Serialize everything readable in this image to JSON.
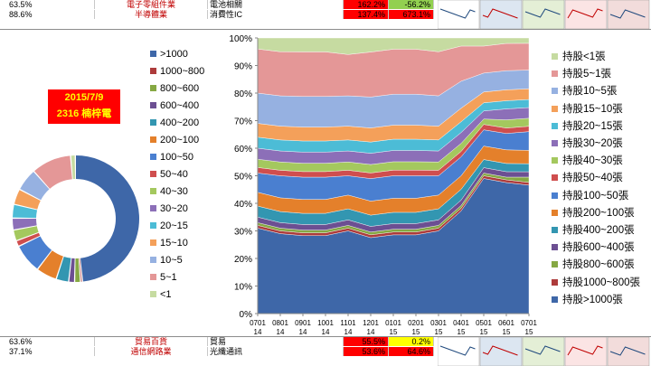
{
  "top_rows": [
    {
      "pct": "63.5%",
      "industry": "電子零組件業",
      "sub": "電池相關",
      "v1": "162.2%",
      "v2": "-56.2%",
      "v2_bg": "#92d050"
    },
    {
      "pct": "88.6%",
      "industry": "半導體業",
      "sub": "消費性IC",
      "v1": "137.4%",
      "v2": "673.1%",
      "v2_bg": "#ff0000"
    }
  ],
  "bottom_rows": [
    {
      "pct": "63.6%",
      "industry": "貿易百貨",
      "sub": "貿易",
      "v1": "55.5%",
      "v2": "0.2%",
      "v2_bg": "#ffff00"
    },
    {
      "pct": "37.1%",
      "industry": "通信網路業",
      "sub": "光纖通訊",
      "v1": "53.6%",
      "v2": "64.6%",
      "v2_bg": "#ff0000"
    }
  ],
  "date_label": "2015/7/9",
  "stock_label": "2316 楠梓電",
  "colors": {
    "tiers": [
      "#3e67a8",
      "#ad3b3b",
      "#86a843",
      "#6c4f92",
      "#3396b1",
      "#e4802b",
      "#4a7fd0",
      "#cf4e4e",
      "#a4c85e",
      "#8c6fb8",
      "#4cbcd6",
      "#f4a05a",
      "#96b1e1",
      "#e49797",
      "#c6dba1"
    ]
  },
  "chart_data": [
    {
      "type": "pie",
      "title": "",
      "labels": [
        ">1000",
        "1000~800",
        "800~600",
        "600~400",
        "400~200",
        "200~100",
        "100~50",
        "50~40",
        "40~30",
        "30~20",
        "20~15",
        "15~10",
        "10~5",
        "5~1",
        "<1"
      ],
      "values": [
        48.5,
        0.5,
        1.5,
        1.5,
        3.2,
        5.3,
        7.5,
        1.5,
        2.8,
        3.0,
        3.5,
        4.0,
        5.8,
        10.2,
        1.2
      ]
    },
    {
      "type": "area",
      "stacked": true,
      "percent": true,
      "x": [
        "0701 14",
        "0801 14",
        "0901 14",
        "1001 14",
        "1101 14",
        "1201 14",
        "0101 15",
        "0201 15",
        "0301 15",
        "0401 15",
        "0501 15",
        "0601 15",
        "0701 15"
      ],
      "ylim": [
        0,
        100
      ],
      "yticks": [
        "0%",
        "10%",
        "20%",
        "30%",
        "40%",
        "50%",
        "60%",
        "70%",
        "80%",
        "90%",
        "100%"
      ],
      "legend_position": "right",
      "series": [
        {
          "name": "持股>1000張",
          "values": [
            31,
            29,
            28,
            28,
            30,
            27,
            28,
            28,
            30,
            38,
            50,
            48,
            48
          ]
        },
        {
          "name": "持股1000~800張",
          "values": [
            1,
            1,
            1,
            1,
            1,
            1,
            1,
            1,
            1,
            1,
            1,
            1,
            1
          ]
        },
        {
          "name": "持股800~600張",
          "values": [
            1,
            1,
            1,
            1,
            1,
            1,
            1,
            1,
            1,
            1,
            1,
            1,
            2
          ]
        },
        {
          "name": "持股600~400張",
          "values": [
            2,
            2,
            2,
            2,
            2,
            2,
            2,
            2,
            2,
            2,
            2,
            2,
            2
          ]
        },
        {
          "name": "持股400~200張",
          "values": [
            4,
            4,
            4,
            4,
            4,
            4,
            4,
            4,
            4,
            4,
            3,
            3,
            3
          ]
        },
        {
          "name": "持股200~100張",
          "values": [
            5,
            5,
            5,
            5,
            5,
            5,
            5,
            5,
            5,
            5,
            5,
            5,
            5
          ]
        },
        {
          "name": "持股100~50張",
          "values": [
            7,
            8,
            8,
            8,
            7,
            8,
            8,
            8,
            7,
            7,
            6,
            6,
            7
          ]
        },
        {
          "name": "持股50~40張",
          "values": [
            2,
            2,
            2,
            2,
            2,
            2,
            2,
            2,
            2,
            2,
            2,
            2,
            2
          ]
        },
        {
          "name": "持股40~30張",
          "values": [
            3,
            3,
            3,
            3,
            3,
            3,
            3,
            3,
            3,
            3,
            2,
            3,
            3
          ]
        },
        {
          "name": "持股30~20張",
          "values": [
            4,
            4,
            4,
            4,
            4,
            4,
            4,
            4,
            4,
            4,
            3,
            4,
            4
          ]
        },
        {
          "name": "持股20~15張",
          "values": [
            4,
            4,
            4,
            4,
            4,
            4,
            4,
            4,
            4,
            4,
            3,
            3,
            3
          ]
        },
        {
          "name": "持股15~10張",
          "values": [
            5,
            5,
            5,
            5,
            5,
            5,
            5,
            5,
            5,
            5,
            4,
            4,
            4
          ]
        },
        {
          "name": "持股10~5張",
          "values": [
            11,
            11,
            11,
            11,
            11,
            11,
            11,
            11,
            11,
            10,
            7,
            7,
            7
          ]
        },
        {
          "name": "持股5~1張",
          "values": [
            16,
            16,
            16,
            16,
            15,
            16,
            16,
            16,
            16,
            13,
            10,
            10,
            10
          ]
        },
        {
          "name": "持股<1張",
          "values": [
            4,
            5,
            5,
            5,
            6,
            5,
            4,
            4,
            5,
            3,
            3,
            2,
            2
          ]
        }
      ]
    }
  ]
}
